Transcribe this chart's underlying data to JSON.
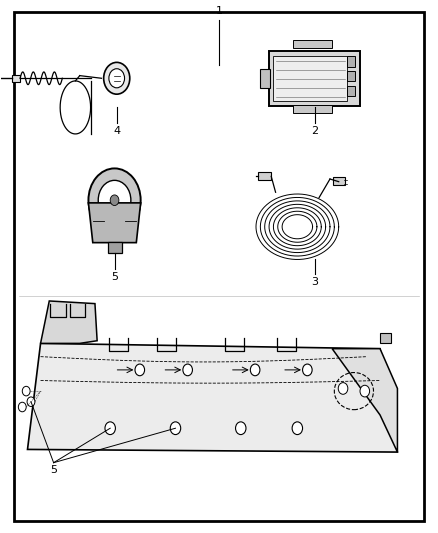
{
  "background_color": "#ffffff",
  "border_color": "#000000",
  "line_color": "#000000",
  "text_color": "#000000",
  "fig_width": 4.38,
  "fig_height": 5.33,
  "dpi": 100
}
